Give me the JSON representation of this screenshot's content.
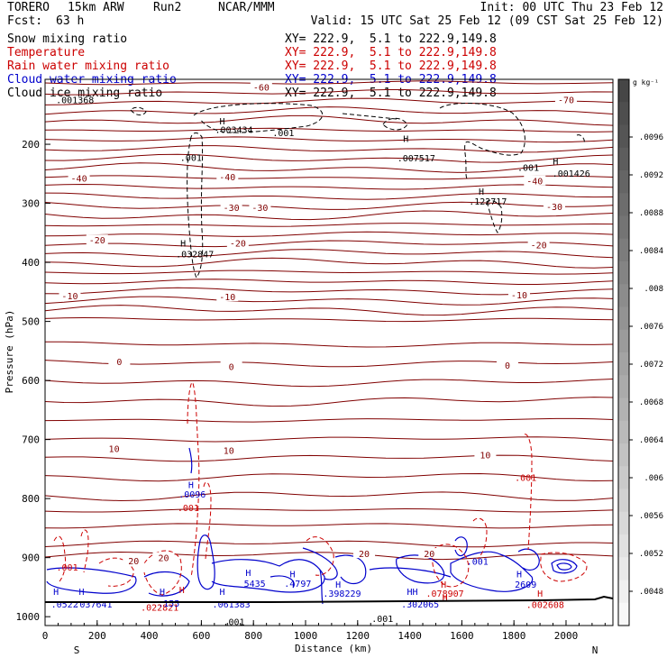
{
  "header": {
    "model": "TORERO",
    "resolution": "15km ARW",
    "run": "Run2",
    "org": "NCAR/MMM",
    "init": "Init: 00 UTC Thu 23 Feb 12",
    "fcst_label": "Fcst:",
    "fcst_value": "63 h",
    "valid": "Valid: 15 UTC Sat 25 Feb 12 (09 CST Sat 25 Feb 12)"
  },
  "fields": [
    {
      "name": "Snow mixing ratio",
      "xy": "XY= 222.9,  5.1 to 222.9,149.8",
      "color": "#000000"
    },
    {
      "name": "Temperature",
      "xy": "XY= 222.9,  5.1 to 222.9,149.8",
      "color": "#cc0000"
    },
    {
      "name": "Rain water mixing ratio",
      "xy": "XY= 222.9,  5.1 to 222.9,149.8",
      "color": "#cc0000"
    },
    {
      "name": "Cloud water mixing ratio",
      "xy": "XY= 222.9,  5.1 to 222.9,149.8",
      "color": "#0000cc"
    },
    {
      "name": "Cloud ice mixing ratio",
      "xy": "XY= 222.9,  5.1 to 222.9,149.8",
      "color": "#000000"
    }
  ],
  "chart_data": {
    "type": "cross-section",
    "xlabel": "Distance (km)",
    "ylabel": "Pressure (hPa)",
    "xlim": [
      0,
      2180
    ],
    "ylim": [
      1015,
      90
    ],
    "x_ticks": [
      "0",
      "200",
      "400",
      "600",
      "800",
      "1000",
      "1200",
      "1400",
      "1600",
      "1800",
      "2000"
    ],
    "y_ticks": [
      "200",
      "300",
      "400",
      "500",
      "600",
      "700",
      "800",
      "900",
      "1000"
    ],
    "end_labels": {
      "left": "S",
      "right": "N"
    },
    "colorbar": {
      "unit": "g kg⁻¹",
      "labels": [
        ".0096",
        ".0092",
        ".0088",
        ".0084",
        ".008",
        ".0076",
        ".0072",
        ".0068",
        ".0064",
        ".006",
        ".0056",
        ".0052",
        ".0048"
      ]
    },
    "temperature_labels": [
      {
        "text": "-70",
        "x": 2000,
        "p": 124
      },
      {
        "text": "-60",
        "x": 830,
        "p": 103
      },
      {
        "text": "-40",
        "x": 130,
        "p": 257
      },
      {
        "text": "-40",
        "x": 700,
        "p": 255
      },
      {
        "text": "-40",
        "x": 1880,
        "p": 262
      },
      {
        "text": "-30",
        "x": 715,
        "p": 307
      },
      {
        "text": "-30",
        "x": 825,
        "p": 307
      },
      {
        "text": "-30",
        "x": 1955,
        "p": 305
      },
      {
        "text": "-20",
        "x": 200,
        "p": 362
      },
      {
        "text": "-20",
        "x": 740,
        "p": 367
      },
      {
        "text": "-20",
        "x": 1895,
        "p": 370
      },
      {
        "text": "-10",
        "x": 95,
        "p": 456
      },
      {
        "text": "-10",
        "x": 700,
        "p": 458
      },
      {
        "text": "-10",
        "x": 1820,
        "p": 455
      },
      {
        "text": "0",
        "x": 285,
        "p": 568
      },
      {
        "text": "0",
        "x": 715,
        "p": 576
      },
      {
        "text": "0",
        "x": 1775,
        "p": 574
      },
      {
        "text": "10",
        "x": 265,
        "p": 715
      },
      {
        "text": "10",
        "x": 705,
        "p": 718
      },
      {
        "text": "10",
        "x": 1690,
        "p": 726
      },
      {
        "text": "20",
        "x": 340,
        "p": 905
      },
      {
        "text": "20",
        "x": 455,
        "p": 900
      },
      {
        "text": "20",
        "x": 1225,
        "p": 893
      },
      {
        "text": "20",
        "x": 1475,
        "p": 893
      }
    ],
    "maxima_labels": [
      {
        "text": ".001368",
        "x": 115,
        "p": 124,
        "color": "#000000"
      },
      {
        "text": "H",
        "x": 680,
        "p": 160,
        "color": "#000000"
      },
      {
        "text": ".003434",
        "x": 725,
        "p": 175,
        "color": "#000000"
      },
      {
        "text": ".001",
        "x": 915,
        "p": 180,
        "color": "#000000"
      },
      {
        "text": ".001",
        "x": 560,
        "p": 222,
        "color": "#000000"
      },
      {
        "text": "H",
        "x": 1385,
        "p": 190,
        "color": "#000000"
      },
      {
        "text": ".007517",
        "x": 1425,
        "p": 223,
        "color": "#000000"
      },
      {
        "text": ".001",
        "x": 1855,
        "p": 239,
        "color": "#000000"
      },
      {
        "text": "H",
        "x": 1960,
        "p": 228,
        "color": "#000000"
      },
      {
        "text": ".001426",
        "x": 2020,
        "p": 249,
        "color": "#000000"
      },
      {
        "text": "H",
        "x": 1675,
        "p": 279,
        "color": "#000000"
      },
      {
        "text": ".122717",
        "x": 1700,
        "p": 296,
        "color": "#000000"
      },
      {
        "text": "H",
        "x": 530,
        "p": 367,
        "color": "#000000"
      },
      {
        "text": ".032847",
        "x": 575,
        "p": 385,
        "color": "#000000"
      },
      {
        "text": ".001",
        "x": 1295,
        "p": 1003,
        "color": "#000000"
      },
      {
        "text": ".001",
        "x": 725,
        "p": 1008,
        "color": "#000000"
      },
      {
        "text": ".001",
        "x": 85,
        "p": 916,
        "color": "#cc0000"
      },
      {
        "text": ".001",
        "x": 550,
        "p": 815,
        "color": "#cc0000"
      },
      {
        "text": ".001",
        "x": 1845,
        "p": 764,
        "color": "#cc0000"
      },
      {
        "text": "H",
        "x": 525,
        "p": 954,
        "color": "#cc0000"
      },
      {
        "text": ".022821",
        "x": 440,
        "p": 984,
        "color": "#cc0000"
      },
      {
        "text": "H",
        "x": 1530,
        "p": 945,
        "color": "#cc0000"
      },
      {
        "text": ".078907",
        "x": 1535,
        "p": 960,
        "color": "#cc0000"
      },
      {
        "text": "H",
        "x": 1535,
        "p": 968,
        "color": "#cc0000"
      },
      {
        "text": "H",
        "x": 1900,
        "p": 960,
        "color": "#cc0000"
      },
      {
        "text": ".002608",
        "x": 1920,
        "p": 979,
        "color": "#cc0000"
      },
      {
        "text": "H",
        "x": 42,
        "p": 957,
        "color": "#0000cc"
      },
      {
        "text": ".0522",
        "x": 75,
        "p": 978,
        "color": "#0000cc"
      },
      {
        "text": "H",
        "x": 140,
        "p": 957,
        "color": "#0000cc"
      },
      {
        "text": ".037641",
        "x": 185,
        "p": 978,
        "color": "#0000cc"
      },
      {
        "text": "H",
        "x": 450,
        "p": 957,
        "color": "#0000cc"
      },
      {
        "text": ".155",
        "x": 475,
        "p": 977,
        "color": "#0000cc"
      },
      {
        "text": "H",
        "x": 560,
        "p": 776,
        "color": "#0000cc"
      },
      {
        "text": ".0096",
        "x": 565,
        "p": 792,
        "color": "#0000cc"
      },
      {
        "text": "H",
        "x": 680,
        "p": 957,
        "color": "#0000cc"
      },
      {
        "text": ".061383",
        "x": 715,
        "p": 978,
        "color": "#0000cc"
      },
      {
        "text": "H",
        "x": 780,
        "p": 925,
        "color": "#0000cc"
      },
      {
        "text": "5435",
        "x": 805,
        "p": 943,
        "color": "#0000cc"
      },
      {
        "text": "H",
        "x": 950,
        "p": 927,
        "color": "#0000cc"
      },
      {
        "text": ".4797",
        "x": 970,
        "p": 943,
        "color": "#0000cc"
      },
      {
        "text": "H",
        "x": 1125,
        "p": 945,
        "color": "#0000cc"
      },
      {
        "text": ".398229",
        "x": 1140,
        "p": 960,
        "color": "#0000cc"
      },
      {
        "text": "HH",
        "x": 1410,
        "p": 957,
        "color": "#0000cc"
      },
      {
        "text": ".302065",
        "x": 1440,
        "p": 978,
        "color": "#0000cc"
      },
      {
        "text": ".001",
        "x": 1660,
        "p": 906,
        "color": "#0000cc"
      },
      {
        "text": "H",
        "x": 1820,
        "p": 927,
        "color": "#0000cc"
      },
      {
        "text": "2609",
        "x": 1845,
        "p": 945,
        "color": "#0000cc"
      }
    ]
  }
}
